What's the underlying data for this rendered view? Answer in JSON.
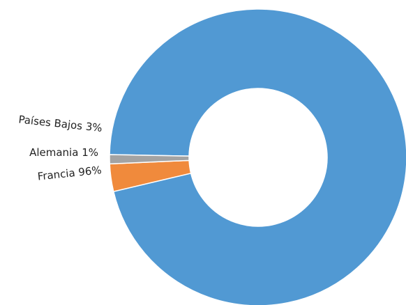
{
  "chart_data": {
    "type": "pie",
    "variant": "donut",
    "title": "",
    "slices": [
      {
        "label": "Francia 96%",
        "category": "Francia",
        "value": 96,
        "color": "#5199D3"
      },
      {
        "label": "Países Bajos 3%",
        "category": "Países Bajos",
        "value": 3,
        "color": "#F08A3C"
      },
      {
        "label": "Alemania 1%",
        "category": "Alemania",
        "value": 1,
        "color": "#A3A3A3"
      }
    ],
    "legend": "none"
  }
}
